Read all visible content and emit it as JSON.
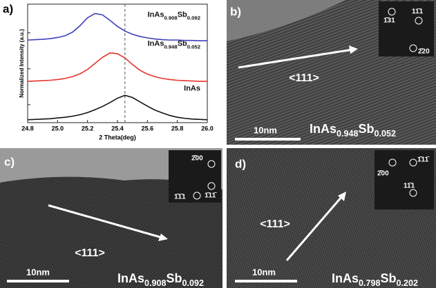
{
  "chart_data": {
    "type": "line",
    "panel_label": "a)",
    "xlabel": "2 Theta(deg)",
    "ylabel": "Normalized Intensity (a.u.)",
    "x": [
      24.8,
      24.85,
      24.9,
      24.95,
      25.0,
      25.05,
      25.1,
      25.15,
      25.2,
      25.25,
      25.3,
      25.35,
      25.4,
      25.45,
      25.5,
      25.55,
      25.6,
      25.65,
      25.7,
      25.75,
      25.8,
      25.85,
      25.9,
      25.95,
      26.0
    ],
    "series": [
      {
        "name": "InAs",
        "color": "#111111",
        "values": [
          0.08,
          0.09,
          0.1,
          0.11,
          0.13,
          0.15,
          0.18,
          0.22,
          0.28,
          0.36,
          0.45,
          0.56,
          0.68,
          0.76,
          0.7,
          0.58,
          0.46,
          0.35,
          0.27,
          0.2,
          0.15,
          0.12,
          0.1,
          0.09,
          0.08
        ]
      },
      {
        "name": "InAs0.948Sb0.052",
        "color": "#e8322a",
        "values": [
          1.15,
          1.16,
          1.17,
          1.18,
          1.2,
          1.23,
          1.28,
          1.36,
          1.48,
          1.65,
          1.82,
          1.94,
          1.92,
          1.8,
          1.62,
          1.46,
          1.35,
          1.28,
          1.23,
          1.2,
          1.18,
          1.17,
          1.16,
          1.15,
          1.15
        ]
      },
      {
        "name": "InAs0.908Sb0.092",
        "color": "#3b3fb8",
        "values": [
          2.3,
          2.31,
          2.32,
          2.34,
          2.37,
          2.42,
          2.52,
          2.7,
          2.92,
          3.04,
          3.0,
          2.85,
          2.68,
          2.55,
          2.46,
          2.4,
          2.36,
          2.33,
          2.31,
          2.3,
          2.3,
          2.29,
          2.29,
          2.28,
          2.28
        ]
      }
    ],
    "vline": 25.45,
    "xlim": [
      24.8,
      26.0
    ],
    "ylim": [
      0,
      3.3
    ],
    "xticks": [
      24.8,
      {
        "value": 25,
        "label": "25.0"
      },
      25.2,
      25.4,
      25.6,
      25.8,
      {
        "value": 26,
        "label": "26.0"
      }
    ],
    "yticks": [
      0.5,
      1.5,
      2.5
    ]
  },
  "panels": [
    {
      "label": "b)",
      "direction": "<111>",
      "scale_bar": "10nm",
      "composition": "InAs0.948Sb0.052",
      "fft_labels": [
        "1̄31",
        "11̄1",
        "2̄20"
      ]
    },
    {
      "label": "c)",
      "direction": "<111>",
      "scale_bar": "10nm",
      "composition": "InAs0.908Sb0.092",
      "fft_labels": [
        "2̄00",
        "1̄1̄1",
        "1̄11̄"
      ]
    },
    {
      "label": "d)",
      "direction": "<111>",
      "scale_bar": "10nm",
      "composition": "InAs0.798Sb0.202",
      "fft_labels": [
        "2̄00",
        "1̄11̄",
        "11̄1"
      ]
    }
  ]
}
